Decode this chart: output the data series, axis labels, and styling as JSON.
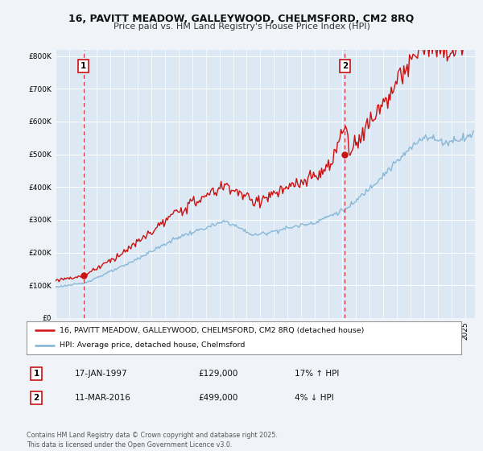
{
  "title1": "16, PAVITT MEADOW, GALLEYWOOD, CHELMSFORD, CM2 8RQ",
  "title2": "Price paid vs. HM Land Registry's House Price Index (HPI)",
  "bg_color": "#f0f4f8",
  "plot_bg_color": "#dce8f4",
  "sale1_date": "17-JAN-1997",
  "sale1_price": 129000,
  "sale1_label": "17% ↑ HPI",
  "sale2_date": "11-MAR-2016",
  "sale2_price": 499000,
  "sale2_label": "4% ↓ HPI",
  "legend1": "16, PAVITT MEADOW, GALLEYWOOD, CHELMSFORD, CM2 8RQ (detached house)",
  "legend2": "HPI: Average price, detached house, Chelmsford",
  "footer": "Contains HM Land Registry data © Crown copyright and database right 2025.\nThis data is licensed under the Open Government Licence v3.0.",
  "sale1_x": 1997.04,
  "sale2_x": 2016.19,
  "hpi_color": "#7fb3d3",
  "price_color": "#cc1111",
  "vline_color": "#cc1111",
  "marker_color": "#cc1111",
  "ylim": [
    0,
    820000
  ],
  "yticks": [
    0,
    100000,
    200000,
    300000,
    400000,
    500000,
    600000,
    700000,
    800000
  ],
  "xlim_start": 1995.0,
  "xlim_end": 2025.7
}
